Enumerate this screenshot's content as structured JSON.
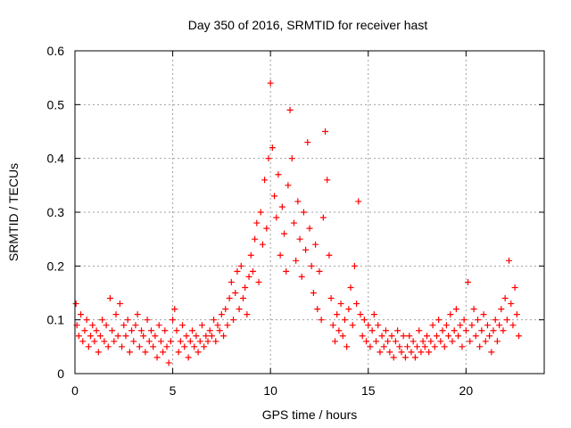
{
  "chart_data": {
    "type": "scatter",
    "title": "Day 350 of 2016, SRMTID for receiver hast",
    "xlabel": "GPS time / hours",
    "ylabel": "SRMTID / TECUs",
    "xlim": [
      0,
      24
    ],
    "ylim": [
      0,
      0.6
    ],
    "xticks": [
      0,
      5,
      10,
      15,
      20
    ],
    "yticks": [
      0,
      0.1,
      0.2,
      0.3,
      0.4,
      0.5,
      0.6
    ],
    "xtick_labels": [
      "0",
      "5",
      "10",
      "15",
      "20"
    ],
    "ytick_labels": [
      "0",
      "0.1",
      "0.2",
      "0.3",
      "0.4",
      "0.5",
      "0.6"
    ],
    "grid": true,
    "marker": "+",
    "color": "#ff0000",
    "series": [
      {
        "name": "SRMTID",
        "points": [
          [
            0.05,
            0.13
          ],
          [
            0.1,
            0.09
          ],
          [
            0.2,
            0.07
          ],
          [
            0.3,
            0.11
          ],
          [
            0.4,
            0.06
          ],
          [
            0.5,
            0.08
          ],
          [
            0.6,
            0.1
          ],
          [
            0.7,
            0.05
          ],
          [
            0.8,
            0.07
          ],
          [
            0.9,
            0.09
          ],
          [
            1.0,
            0.06
          ],
          [
            1.1,
            0.08
          ],
          [
            1.2,
            0.04
          ],
          [
            1.3,
            0.07
          ],
          [
            1.4,
            0.1
          ],
          [
            1.5,
            0.06
          ],
          [
            1.6,
            0.09
          ],
          [
            1.7,
            0.05
          ],
          [
            1.8,
            0.14
          ],
          [
            1.9,
            0.08
          ],
          [
            2.0,
            0.06
          ],
          [
            2.1,
            0.11
          ],
          [
            2.2,
            0.07
          ],
          [
            2.3,
            0.13
          ],
          [
            2.4,
            0.05
          ],
          [
            2.5,
            0.09
          ],
          [
            2.6,
            0.07
          ],
          [
            2.7,
            0.1
          ],
          [
            2.8,
            0.04
          ],
          [
            2.9,
            0.08
          ],
          [
            3.0,
            0.06
          ],
          [
            3.1,
            0.09
          ],
          [
            3.2,
            0.11
          ],
          [
            3.3,
            0.05
          ],
          [
            3.4,
            0.08
          ],
          [
            3.5,
            0.07
          ],
          [
            3.6,
            0.04
          ],
          [
            3.7,
            0.1
          ],
          [
            3.8,
            0.06
          ],
          [
            3.9,
            0.08
          ],
          [
            4.0,
            0.05
          ],
          [
            4.1,
            0.07
          ],
          [
            4.2,
            0.03
          ],
          [
            4.3,
            0.09
          ],
          [
            4.4,
            0.06
          ],
          [
            4.5,
            0.04
          ],
          [
            4.6,
            0.08
          ],
          [
            4.7,
            0.05
          ],
          [
            4.8,
            0.02
          ],
          [
            4.9,
            0.06
          ],
          [
            5.0,
            0.1
          ],
          [
            5.1,
            0.12
          ],
          [
            5.2,
            0.08
          ],
          [
            5.3,
            0.04
          ],
          [
            5.4,
            0.06
          ],
          [
            5.5,
            0.09
          ],
          [
            5.6,
            0.05
          ],
          [
            5.7,
            0.07
          ],
          [
            5.8,
            0.03
          ],
          [
            5.9,
            0.06
          ],
          [
            6.0,
            0.08
          ],
          [
            6.1,
            0.05
          ],
          [
            6.2,
            0.07
          ],
          [
            6.3,
            0.04
          ],
          [
            6.4,
            0.06
          ],
          [
            6.5,
            0.09
          ],
          [
            6.6,
            0.05
          ],
          [
            6.7,
            0.07
          ],
          [
            6.8,
            0.06
          ],
          [
            6.9,
            0.08
          ],
          [
            7.0,
            0.07
          ],
          [
            7.1,
            0.1
          ],
          [
            7.2,
            0.06
          ],
          [
            7.3,
            0.09
          ],
          [
            7.4,
            0.08
          ],
          [
            7.5,
            0.11
          ],
          [
            7.6,
            0.07
          ],
          [
            7.7,
            0.12
          ],
          [
            7.8,
            0.09
          ],
          [
            7.9,
            0.14
          ],
          [
            8.0,
            0.17
          ],
          [
            8.1,
            0.1
          ],
          [
            8.2,
            0.15
          ],
          [
            8.3,
            0.19
          ],
          [
            8.4,
            0.12
          ],
          [
            8.5,
            0.2
          ],
          [
            8.6,
            0.14
          ],
          [
            8.7,
            0.16
          ],
          [
            8.8,
            0.11
          ],
          [
            8.9,
            0.18
          ],
          [
            9.0,
            0.22
          ],
          [
            9.1,
            0.19
          ],
          [
            9.2,
            0.25
          ],
          [
            9.3,
            0.28
          ],
          [
            9.4,
            0.17
          ],
          [
            9.5,
            0.3
          ],
          [
            9.6,
            0.24
          ],
          [
            9.7,
            0.36
          ],
          [
            9.8,
            0.27
          ],
          [
            9.9,
            0.4
          ],
          [
            10.0,
            0.54
          ],
          [
            10.1,
            0.42
          ],
          [
            10.2,
            0.33
          ],
          [
            10.3,
            0.29
          ],
          [
            10.4,
            0.37
          ],
          [
            10.5,
            0.22
          ],
          [
            10.6,
            0.31
          ],
          [
            10.7,
            0.26
          ],
          [
            10.8,
            0.19
          ],
          [
            10.9,
            0.35
          ],
          [
            11.0,
            0.49
          ],
          [
            11.1,
            0.4
          ],
          [
            11.2,
            0.28
          ],
          [
            11.3,
            0.21
          ],
          [
            11.4,
            0.32
          ],
          [
            11.5,
            0.25
          ],
          [
            11.6,
            0.18
          ],
          [
            11.7,
            0.3
          ],
          [
            11.8,
            0.23
          ],
          [
            11.9,
            0.43
          ],
          [
            12.0,
            0.27
          ],
          [
            12.1,
            0.2
          ],
          [
            12.2,
            0.15
          ],
          [
            12.3,
            0.24
          ],
          [
            12.4,
            0.12
          ],
          [
            12.5,
            0.19
          ],
          [
            12.6,
            0.1
          ],
          [
            12.7,
            0.29
          ],
          [
            12.8,
            0.45
          ],
          [
            12.9,
            0.36
          ],
          [
            13.0,
            0.22
          ],
          [
            13.1,
            0.14
          ],
          [
            13.2,
            0.09
          ],
          [
            13.3,
            0.06
          ],
          [
            13.4,
            0.11
          ],
          [
            13.5,
            0.08
          ],
          [
            13.6,
            0.13
          ],
          [
            13.7,
            0.07
          ],
          [
            13.8,
            0.1
          ],
          [
            13.9,
            0.05
          ],
          [
            14.0,
            0.12
          ],
          [
            14.1,
            0.16
          ],
          [
            14.2,
            0.09
          ],
          [
            14.3,
            0.2
          ],
          [
            14.4,
            0.13
          ],
          [
            14.5,
            0.32
          ],
          [
            14.6,
            0.11
          ],
          [
            14.7,
            0.07
          ],
          [
            14.8,
            0.1
          ],
          [
            14.9,
            0.06
          ],
          [
            15.0,
            0.09
          ],
          [
            15.1,
            0.05
          ],
          [
            15.2,
            0.08
          ],
          [
            15.3,
            0.11
          ],
          [
            15.4,
            0.06
          ],
          [
            15.5,
            0.09
          ],
          [
            15.6,
            0.04
          ],
          [
            15.7,
            0.07
          ],
          [
            15.8,
            0.05
          ],
          [
            15.9,
            0.08
          ],
          [
            16.0,
            0.06
          ],
          [
            16.1,
            0.04
          ],
          [
            16.2,
            0.07
          ],
          [
            16.3,
            0.03
          ],
          [
            16.4,
            0.06
          ],
          [
            16.5,
            0.08
          ],
          [
            16.6,
            0.05
          ],
          [
            16.7,
            0.04
          ],
          [
            16.8,
            0.07
          ],
          [
            16.9,
            0.03
          ],
          [
            17.0,
            0.05
          ],
          [
            17.1,
            0.07
          ],
          [
            17.2,
            0.04
          ],
          [
            17.3,
            0.06
          ],
          [
            17.4,
            0.03
          ],
          [
            17.5,
            0.05
          ],
          [
            17.6,
            0.08
          ],
          [
            17.7,
            0.04
          ],
          [
            17.8,
            0.06
          ],
          [
            17.9,
            0.05
          ],
          [
            18.0,
            0.07
          ],
          [
            18.1,
            0.04
          ],
          [
            18.2,
            0.06
          ],
          [
            18.3,
            0.09
          ],
          [
            18.4,
            0.05
          ],
          [
            18.5,
            0.07
          ],
          [
            18.6,
            0.1
          ],
          [
            18.7,
            0.06
          ],
          [
            18.8,
            0.08
          ],
          [
            18.9,
            0.05
          ],
          [
            19.0,
            0.09
          ],
          [
            19.1,
            0.07
          ],
          [
            19.2,
            0.11
          ],
          [
            19.3,
            0.06
          ],
          [
            19.4,
            0.08
          ],
          [
            19.5,
            0.12
          ],
          [
            19.6,
            0.07
          ],
          [
            19.7,
            0.09
          ],
          [
            19.8,
            0.05
          ],
          [
            19.9,
            0.1
          ],
          [
            20.0,
            0.08
          ],
          [
            20.1,
            0.17
          ],
          [
            20.2,
            0.06
          ],
          [
            20.3,
            0.09
          ],
          [
            20.4,
            0.12
          ],
          [
            20.5,
            0.07
          ],
          [
            20.6,
            0.1
          ],
          [
            20.7,
            0.05
          ],
          [
            20.8,
            0.08
          ],
          [
            20.9,
            0.11
          ],
          [
            21.0,
            0.06
          ],
          [
            21.1,
            0.09
          ],
          [
            21.2,
            0.07
          ],
          [
            21.3,
            0.04
          ],
          [
            21.4,
            0.08
          ],
          [
            21.5,
            0.1
          ],
          [
            21.6,
            0.06
          ],
          [
            21.7,
            0.09
          ],
          [
            21.8,
            0.12
          ],
          [
            21.9,
            0.08
          ],
          [
            22.0,
            0.14
          ],
          [
            22.1,
            0.1
          ],
          [
            22.2,
            0.21
          ],
          [
            22.3,
            0.13
          ],
          [
            22.4,
            0.09
          ],
          [
            22.5,
            0.16
          ],
          [
            22.6,
            0.11
          ],
          [
            22.7,
            0.07
          ]
        ]
      }
    ]
  }
}
